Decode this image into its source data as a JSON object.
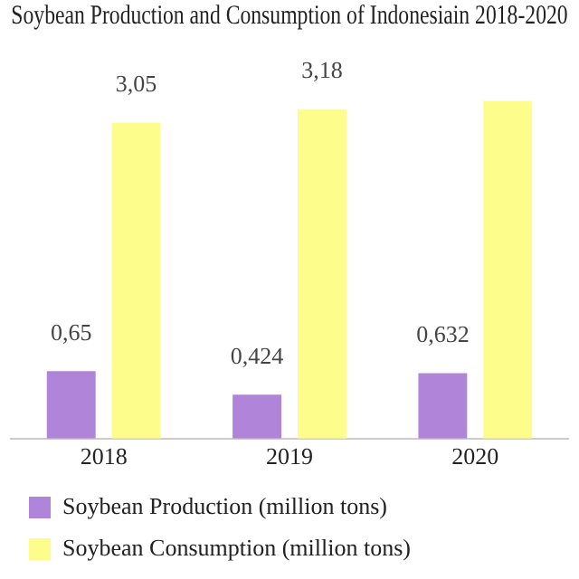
{
  "chart_data": {
    "type": "bar",
    "title": "Soybean Production and Consumption of Indonesiain 2018-2020",
    "categories": [
      "2018",
      "2019",
      "2020"
    ],
    "series": [
      {
        "name": "Soybean Production (million tons)",
        "color": "#b084d8",
        "values": [
          0.65,
          0.424,
          0.632
        ],
        "value_labels": [
          "0,65",
          "0,424",
          "0,632"
        ]
      },
      {
        "name": "Soybean Consumption (million tons)",
        "color": "#fdfd8c",
        "values": [
          3.05,
          3.18,
          3.26
        ],
        "value_labels": [
          "3,05",
          "3,18",
          null
        ]
      }
    ],
    "tick_labels": "x",
    "legend": "bottom"
  }
}
